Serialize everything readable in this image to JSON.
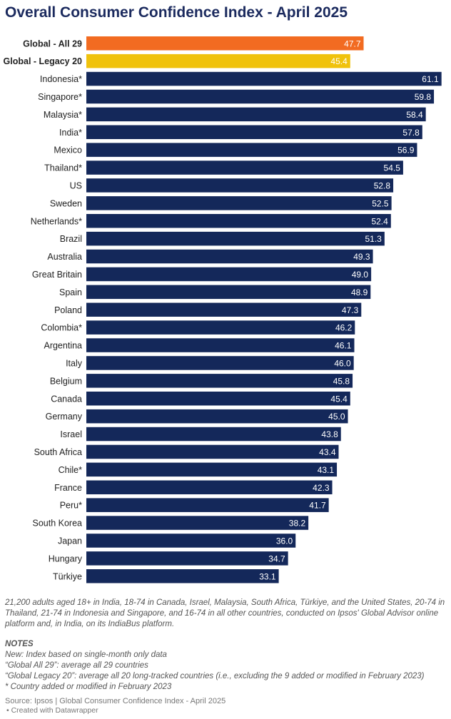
{
  "title": "Overall Consumer Confidence Index - April 2025",
  "chart_data": {
    "type": "bar",
    "orientation": "horizontal",
    "title": "Overall Consumer Confidence Index - April 2025",
    "xlim": [
      0,
      62
    ],
    "categories": [
      "Global - All 29",
      "Global - Legacy 20",
      "Indonesia*",
      "Singapore*",
      "Malaysia*",
      "India*",
      "Mexico",
      "Thailand*",
      "US",
      "Sweden",
      "Netherlands*",
      "Brazil",
      "Australia",
      "Great Britain",
      "Spain",
      "Poland",
      "Colombia*",
      "Argentina",
      "Italy",
      "Belgium",
      "Canada",
      "Germany",
      "Israel",
      "South Africa",
      "Chile*",
      "France",
      "Peru*",
      "South Korea",
      "Japan",
      "Hungary",
      "Türkiye"
    ],
    "values": [
      47.7,
      45.4,
      61.1,
      59.8,
      58.4,
      57.8,
      56.9,
      54.5,
      52.8,
      52.5,
      52.4,
      51.3,
      49.3,
      49.0,
      48.9,
      47.3,
      46.2,
      46.1,
      46.0,
      45.8,
      45.4,
      45.0,
      43.8,
      43.4,
      43.1,
      42.3,
      41.7,
      38.2,
      36.0,
      34.7,
      33.1
    ],
    "value_labels": [
      "47.7",
      "45.4",
      "61.1",
      "59.8",
      "58.4",
      "57.8",
      "56.9",
      "54.5",
      "52.8",
      "52.5",
      "52.4",
      "51.3",
      "49.3",
      "49.0",
      "48.9",
      "47.3",
      "46.2",
      "46.1",
      "46.0",
      "45.8",
      "45.4",
      "45.0",
      "43.8",
      "43.4",
      "43.1",
      "42.3",
      "41.7",
      "38.2",
      "36.0",
      "34.7",
      "33.1"
    ],
    "bold_categories": [
      "Global - All 29",
      "Global - Legacy 20"
    ],
    "colors": {
      "Global - All 29": "#f26b21",
      "Global - Legacy 20": "#f0c20c",
      "default": "#14285a"
    },
    "label_color": "#ffffff",
    "category_color": "#222222"
  },
  "methodology": "21,200 adults aged 18+ in India, 18-74 in Canada, Israel, Malaysia, South Africa, Türkiye, and the United States, 20-74 in Thailand, 21-74 in Indonesia and Singapore, and 16-74 in all other countries, conducted on Ipsos' Global Advisor online platform and, in India, on its IndiaBus platform.",
  "notes": {
    "heading": "NOTES",
    "lines": [
      "New: Index based on single-month only data",
      "“Global All 29”: average all 29 countries",
      "“Global Legacy 20”: average all 20 long-tracked countries (i.e., excluding the 9 added or modified in February 2023)",
      "* Country added or modified in February 2023"
    ]
  },
  "source": "Source: Ipsos | Global Consumer Confidence Index - April 2025",
  "credit": "• Created with Datawrapper"
}
